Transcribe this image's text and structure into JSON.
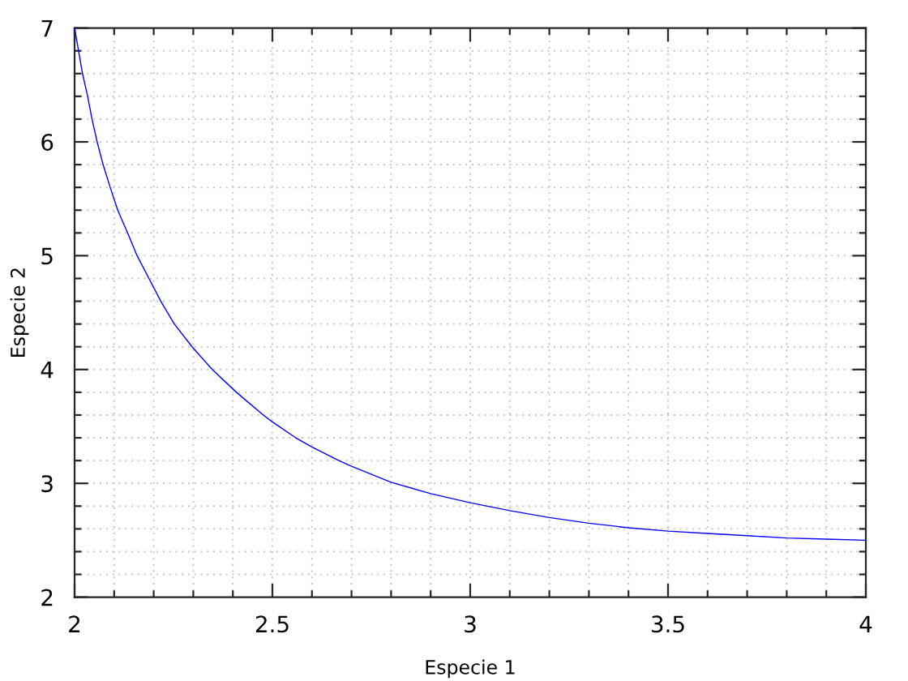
{
  "chart_data": {
    "type": "line",
    "xlabel": "Especie 1",
    "ylabel": "Especie 2",
    "x": [
      2.0,
      2.01,
      2.02,
      2.033,
      2.044,
      2.057,
      2.072,
      2.09,
      2.109,
      2.134,
      2.158,
      2.188,
      2.218,
      2.252,
      2.297,
      2.348,
      2.409,
      2.477,
      2.5,
      2.559,
      2.6,
      2.668,
      2.7,
      2.8,
      2.9,
      3.0,
      3.1,
      3.2,
      3.3,
      3.4,
      3.5,
      3.6,
      3.7,
      3.8,
      3.9,
      4.0
    ],
    "series": [
      {
        "color": "#0000ff",
        "values": [
          7.0,
          6.8,
          6.6,
          6.4,
          6.2,
          6.0,
          5.8,
          5.6,
          5.4,
          5.2,
          5.0,
          4.8,
          4.6,
          4.4,
          4.2,
          4.0,
          3.8,
          3.6,
          3.54,
          3.4,
          3.32,
          3.2,
          3.15,
          3.01,
          2.91,
          2.83,
          2.76,
          2.7,
          2.65,
          2.61,
          2.58,
          2.56,
          2.54,
          2.52,
          2.51,
          2.5
        ]
      }
    ],
    "xlim": [
      2,
      4
    ],
    "ylim": [
      2,
      7
    ],
    "xticks": [
      2,
      {
        "value": 2.1,
        "label": null
      },
      {
        "value": 2.2,
        "label": null
      },
      {
        "value": 2.3,
        "label": null
      },
      {
        "value": 2.4,
        "label": null
      },
      2.5,
      {
        "value": 2.6,
        "label": null
      },
      {
        "value": 2.7,
        "label": null
      },
      {
        "value": 2.8,
        "label": null
      },
      {
        "value": 2.9,
        "label": null
      },
      3,
      {
        "value": 3.1,
        "label": null
      },
      {
        "value": 3.2,
        "label": null
      },
      {
        "value": 3.3,
        "label": null
      },
      {
        "value": 3.4,
        "label": null
      },
      3.5,
      {
        "value": 3.6,
        "label": null
      },
      {
        "value": 3.7,
        "label": null
      },
      {
        "value": 3.8,
        "label": null
      },
      {
        "value": 3.9,
        "label": null
      },
      4
    ],
    "yticks": [
      2,
      {
        "value": 2.2,
        "label": null
      },
      {
        "value": 2.4,
        "label": null
      },
      {
        "value": 2.6,
        "label": null
      },
      {
        "value": 2.8,
        "label": null
      },
      3,
      {
        "value": 3.2,
        "label": null
      },
      {
        "value": 3.4,
        "label": null
      },
      {
        "value": 3.6,
        "label": null
      },
      {
        "value": 3.8,
        "label": null
      },
      4,
      {
        "value": 4.2,
        "label": null
      },
      {
        "value": 4.4,
        "label": null
      },
      {
        "value": 4.6,
        "label": null
      },
      {
        "value": 4.8,
        "label": null
      },
      5,
      {
        "value": 5.2,
        "label": null
      },
      {
        "value": 5.4,
        "label": null
      },
      {
        "value": 5.6,
        "label": null
      },
      {
        "value": 5.8,
        "label": null
      },
      6,
      {
        "value": 6.2,
        "label": null
      },
      {
        "value": 6.4,
        "label": null
      },
      {
        "value": 6.6,
        "label": null
      },
      {
        "value": 6.8,
        "label": null
      },
      7
    ],
    "grid": true,
    "marker": "none",
    "line_style": "solid"
  }
}
